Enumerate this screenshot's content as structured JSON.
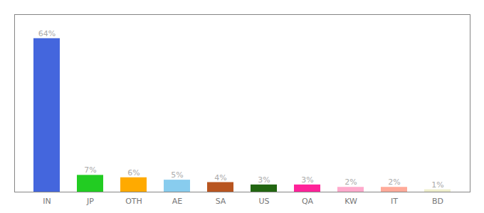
{
  "chart_data": {
    "type": "bar",
    "categories": [
      "IN",
      "JP",
      "OTH",
      "AE",
      "SA",
      "US",
      "QA",
      "KW",
      "IT",
      "BD"
    ],
    "values": [
      64,
      7,
      6,
      5,
      4,
      3,
      3,
      2,
      2,
      1
    ],
    "value_labels": [
      "64%",
      "7%",
      "6%",
      "5%",
      "4%",
      "3%",
      "3%",
      "2%",
      "2%",
      "1%"
    ],
    "colors": [
      "#4466dd",
      "#22cc22",
      "#ffaa00",
      "#88ccee",
      "#b85520",
      "#226611",
      "#ff2299",
      "#ffaacc",
      "#ffaa99",
      "#eeeecc"
    ],
    "ylim": [
      0,
      74
    ],
    "grid": false,
    "data_labels": true,
    "tick_labels": "x"
  }
}
